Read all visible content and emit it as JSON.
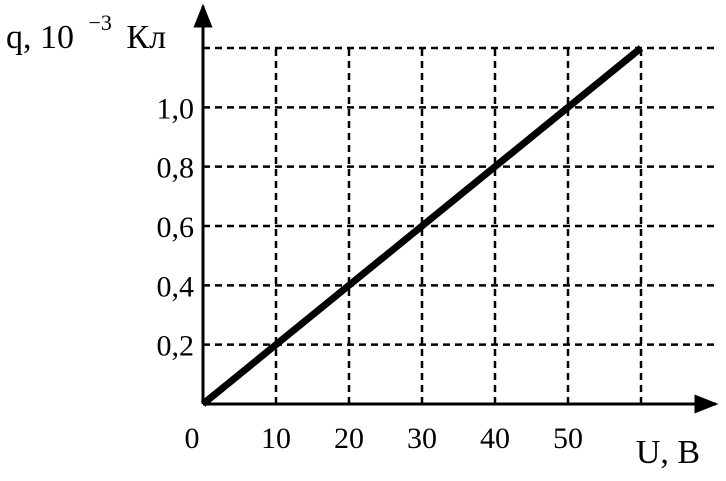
{
  "chart_data": {
    "type": "line",
    "xlabel": "U, В",
    "ylabel": {
      "prefix": "q, 10",
      "exponent": "−3",
      "unit": "Кл"
    },
    "origin_label": "0",
    "x_ticks": [
      {
        "value": 10,
        "label": "10"
      },
      {
        "value": 20,
        "label": "20"
      },
      {
        "value": 30,
        "label": "30"
      },
      {
        "value": 40,
        "label": "40"
      },
      {
        "value": 50,
        "label": "50"
      }
    ],
    "y_ticks": [
      {
        "value": 0.2,
        "label": "0,2"
      },
      {
        "value": 0.4,
        "label": "0,4"
      },
      {
        "value": 0.6,
        "label": "0,6"
      },
      {
        "value": 0.8,
        "label": "0,8"
      },
      {
        "value": 1.0,
        "label": "1,0"
      }
    ],
    "xlim": [
      0,
      60
    ],
    "ylim": [
      0,
      1.2
    ],
    "grid": true,
    "grid_style": "dashed",
    "series": [
      {
        "x": [
          0,
          60
        ],
        "y": [
          0,
          1.2
        ]
      }
    ],
    "colors": {
      "line": "#000000",
      "grid": "#000000",
      "axis": "#000000"
    }
  }
}
